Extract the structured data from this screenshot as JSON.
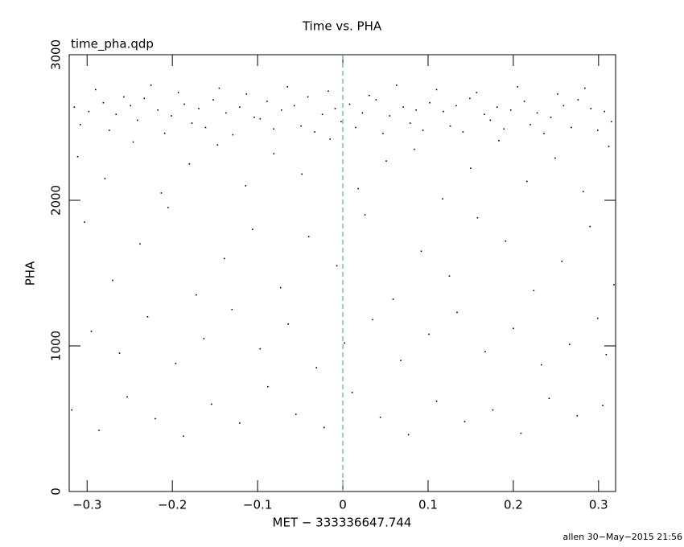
{
  "chart_data": {
    "type": "scatter",
    "title": "Time vs. PHA",
    "subtitle": "time_pha.qdp",
    "x_label": "MET − 333336647.744",
    "y_label": "PHA",
    "footer": "allen 30−May−2015 21:56",
    "color": "#000000",
    "vline": 0,
    "vline_color": "#2a9db0",
    "xlim": [
      -0.321,
      0.32
    ],
    "ylim": [
      0,
      3000
    ],
    "xticks": [
      {
        "value": -0.3,
        "label": "−0.3"
      },
      {
        "value": -0.2,
        "label": "−0.2"
      },
      {
        "value": -0.1,
        "label": "−0.1"
      },
      0,
      0.1,
      0.2,
      0.3
    ],
    "yticks": [
      0,
      1000,
      2000,
      3000
    ],
    "x": [
      -0.315,
      -0.298,
      -0.281,
      -0.266,
      -0.249,
      -0.233,
      -0.217,
      -0.201,
      -0.186,
      -0.169,
      -0.152,
      -0.137,
      -0.121,
      -0.104,
      -0.089,
      -0.072,
      -0.057,
      -0.041,
      -0.024,
      -0.009,
      0.008,
      0.023,
      0.039,
      0.055,
      0.071,
      0.086,
      0.102,
      0.118,
      0.133,
      0.149,
      0.166,
      0.181,
      0.197,
      0.213,
      0.228,
      0.244,
      0.259,
      0.276,
      0.291,
      0.307,
      -0.308,
      -0.29,
      -0.274,
      -0.257,
      -0.241,
      -0.225,
      -0.209,
      -0.193,
      -0.177,
      -0.161,
      -0.145,
      -0.129,
      -0.113,
      -0.097,
      -0.081,
      -0.065,
      -0.049,
      -0.033,
      -0.017,
      -0.002,
      0.015,
      0.031,
      0.047,
      0.063,
      0.079,
      0.094,
      0.11,
      0.126,
      0.141,
      0.157,
      0.173,
      0.189,
      0.205,
      0.22,
      0.236,
      0.252,
      0.268,
      0.284,
      0.299,
      0.315,
      -0.311,
      -0.279,
      -0.246,
      -0.213,
      -0.18,
      -0.147,
      -0.114,
      -0.081,
      -0.048,
      -0.015,
      0.018,
      0.051,
      0.084,
      0.117,
      0.15,
      0.183,
      0.216,
      0.249,
      0.282,
      0.312,
      -0.303,
      -0.27,
      -0.238,
      -0.205,
      -0.172,
      -0.139,
      -0.106,
      -0.073,
      -0.04,
      -0.007,
      0.026,
      0.059,
      0.092,
      0.125,
      0.158,
      0.191,
      0.224,
      0.257,
      0.29,
      0.318,
      -0.295,
      -0.262,
      -0.229,
      -0.196,
      -0.163,
      -0.13,
      -0.097,
      -0.064,
      -0.031,
      0.002,
      0.035,
      0.068,
      0.101,
      0.134,
      0.167,
      0.2,
      0.233,
      0.266,
      0.299,
      0.309,
      -0.318,
      -0.286,
      -0.253,
      -0.22,
      -0.187,
      -0.154,
      -0.121,
      -0.088,
      -0.055,
      -0.022,
      0.011,
      0.044,
      0.077,
      0.11,
      0.143,
      0.176,
      0.209,
      0.242,
      0.275,
      0.305
    ],
    "values": [
      2640,
      2610,
      2670,
      2590,
      2650,
      2700,
      2620,
      2580,
      2660,
      2630,
      2690,
      2600,
      2640,
      2570,
      2680,
      2620,
      2650,
      2710,
      2590,
      2630,
      2660,
      2600,
      2690,
      2580,
      2640,
      2620,
      2670,
      2610,
      2650,
      2700,
      2590,
      2640,
      2620,
      2680,
      2600,
      2570,
      2650,
      2690,
      2630,
      2610,
      2520,
      2760,
      2480,
      2710,
      2550,
      2790,
      2460,
      2740,
      2530,
      2500,
      2770,
      2450,
      2730,
      2560,
      2490,
      2780,
      2510,
      2470,
      2750,
      2540,
      2500,
      2720,
      2460,
      2790,
      2530,
      2480,
      2760,
      2510,
      2470,
      2740,
      2550,
      2490,
      2780,
      2520,
      2460,
      2730,
      2500,
      2770,
      2480,
      2540,
      2300,
      2150,
      2400,
      2050,
      2250,
      2380,
      2100,
      2320,
      2180,
      2420,
      2080,
      2270,
      2350,
      2010,
      2220,
      2410,
      2130,
      2290,
      2060,
      2370,
      1850,
      1450,
      1700,
      1950,
      1350,
      1600,
      1800,
      1400,
      1750,
      1550,
      1900,
      1320,
      1650,
      1480,
      1880,
      1720,
      1380,
      1580,
      1820,
      1420,
      1100,
      950,
      1200,
      880,
      1050,
      1250,
      980,
      1150,
      850,
      1020,
      1180,
      900,
      1080,
      1230,
      960,
      1120,
      870,
      1010,
      1190,
      940,
      560,
      420,
      650,
      500,
      380,
      600,
      470,
      720,
      530,
      440,
      680,
      510,
      390,
      620,
      480,
      560,
      400,
      640,
      520,
      590
    ]
  }
}
